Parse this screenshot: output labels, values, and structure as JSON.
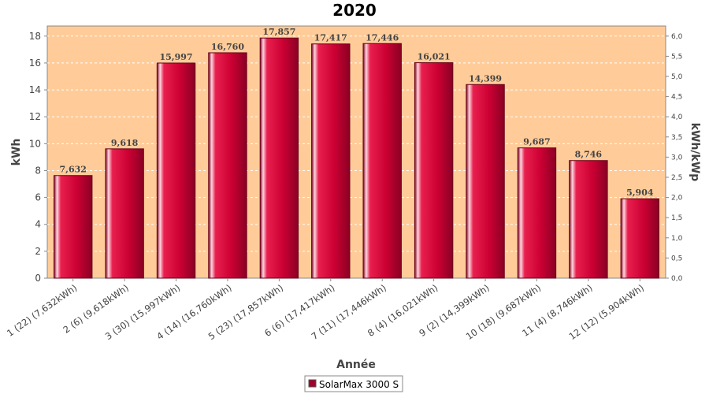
{
  "chart_data": {
    "type": "bar",
    "title": "2020",
    "xlabel": "Année",
    "ylabel": "kWh",
    "y2label": "kWh/kWp",
    "ylim": [
      0,
      18.75
    ],
    "y_ticks": [
      "0",
      "2",
      "4",
      "6",
      "8",
      "10",
      "12",
      "14",
      "16",
      "18"
    ],
    "y2lim": [
      0,
      6.25
    ],
    "y2_ticks": [
      "0,0",
      "0,5",
      "1,0",
      "1,5",
      "2,0",
      "2,5",
      "3,0",
      "3,5",
      "4,0",
      "4,5",
      "5,0",
      "5,5",
      "6,0"
    ],
    "grid": true,
    "background_color": "#ffcc99",
    "bar_color": "#cc0033",
    "categories": [
      "1 (22)  (7,632kWh)",
      "2 (6)  (9,618kWh)",
      "3 (30)  (15,997kWh)",
      "4 (14)  (16,760kWh)",
      "5 (23)  (17,857kWh)",
      "6 (6)  (17,417kWh)",
      "7 (11)  (17,446kWh)",
      "8 (4)  (16,021kWh)",
      "9 (2)  (14,399kWh)",
      "10 (18)  (9,687kWh)",
      "11 (4)  (8,746kWh)",
      "12 (12)  (5,904kWh)"
    ],
    "values": [
      7.632,
      9.618,
      15.997,
      16.76,
      17.857,
      17.417,
      17.446,
      16.021,
      14.399,
      9.687,
      8.746,
      5.904
    ],
    "value_labels": [
      "7,632",
      "9,618",
      "15,997",
      "16,760",
      "17,857",
      "17,417",
      "17,446",
      "16,021",
      "14,399",
      "9,687",
      "8,746",
      "5,904"
    ],
    "series": [
      {
        "name": "SolarMax 3000 S",
        "values": [
          7.632,
          9.618,
          15.997,
          16.76,
          17.857,
          17.417,
          17.446,
          16.021,
          14.399,
          9.687,
          8.746,
          5.904
        ]
      }
    ],
    "legend_position": "bottom-center"
  }
}
